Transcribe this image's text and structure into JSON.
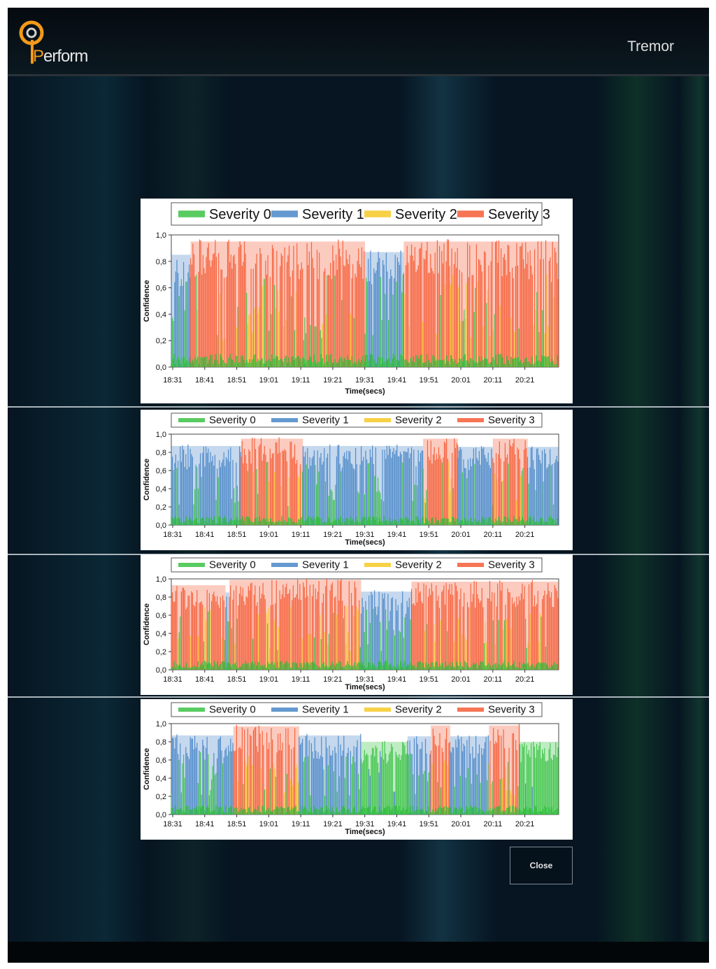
{
  "app": {
    "logo_text_prefix": "P",
    "logo_text_rest": "erform",
    "screen_title": "Tremor"
  },
  "legend": [
    {
      "label": "Severity 0",
      "color": "#2fbf3a"
    },
    {
      "label": "Severity 1",
      "color": "#3e7fc4"
    },
    {
      "label": "Severity 2",
      "color": "#f5c518"
    },
    {
      "label": "Severity 3",
      "color": "#f4532b"
    }
  ],
  "close_label": "Close",
  "chart_data": [
    {
      "type": "area",
      "title": "",
      "xlabel": "Time(secs)",
      "ylabel": "Confidence",
      "ylim": [
        0,
        1
      ],
      "yticks": [
        "0,0",
        "0,2",
        "0,4",
        "0,6",
        "0,8",
        "1,0"
      ],
      "xticks": [
        "18:31",
        "18:41",
        "18:51",
        "19:01",
        "19:11",
        "19:21",
        "19:31",
        "19:41",
        "19:51",
        "20:01",
        "20:11",
        "20:21"
      ],
      "dominant_segments": [
        {
          "from": 0,
          "to": 0.05,
          "severity": 1,
          "level": 0.85
        },
        {
          "from": 0.05,
          "to": 0.5,
          "severity": 3,
          "level": 0.95
        },
        {
          "from": 0.5,
          "to": 0.6,
          "severity": 1,
          "level": 0.87
        },
        {
          "from": 0.6,
          "to": 1.0,
          "severity": 3,
          "level": 0.95
        }
      ]
    },
    {
      "type": "area",
      "title": "",
      "xlabel": "Time(secs)",
      "ylabel": "Confidence",
      "ylim": [
        0,
        1
      ],
      "yticks": [
        "0,0",
        "0,2",
        "0,4",
        "0,6",
        "0,8",
        "1,0"
      ],
      "xticks": [
        "18:31",
        "18:41",
        "18:51",
        "19:01",
        "19:11",
        "19:21",
        "19:31",
        "19:41",
        "19:51",
        "20:01",
        "20:11",
        "20:21"
      ],
      "dominant_segments": [
        {
          "from": 0,
          "to": 0.18,
          "severity": 1,
          "level": 0.87
        },
        {
          "from": 0.18,
          "to": 0.34,
          "severity": 3,
          "level": 0.95
        },
        {
          "from": 0.34,
          "to": 0.65,
          "severity": 1,
          "level": 0.87
        },
        {
          "from": 0.65,
          "to": 0.74,
          "severity": 3,
          "level": 0.95
        },
        {
          "from": 0.74,
          "to": 0.83,
          "severity": 1,
          "level": 0.86
        },
        {
          "from": 0.83,
          "to": 0.92,
          "severity": 3,
          "level": 0.95
        },
        {
          "from": 0.92,
          "to": 1.0,
          "severity": 1,
          "level": 0.86
        }
      ]
    },
    {
      "type": "area",
      "title": "",
      "xlabel": "Time(secs)",
      "ylabel": "Confidence",
      "ylim": [
        0,
        1
      ],
      "yticks": [
        "0,0",
        "0,2",
        "0,4",
        "0,6",
        "0,8",
        "1,0"
      ],
      "xticks": [
        "18:31",
        "18:41",
        "18:51",
        "19:01",
        "19:11",
        "19:21",
        "19:31",
        "19:41",
        "19:51",
        "20:01",
        "20:11",
        "20:21"
      ],
      "dominant_segments": [
        {
          "from": 0,
          "to": 0.14,
          "severity": 3,
          "level": 0.93
        },
        {
          "from": 0.14,
          "to": 0.15,
          "severity": 1,
          "level": 0.85
        },
        {
          "from": 0.15,
          "to": 0.49,
          "severity": 3,
          "level": 0.99
        },
        {
          "from": 0.49,
          "to": 0.62,
          "severity": 1,
          "level": 0.86
        },
        {
          "from": 0.62,
          "to": 1.0,
          "severity": 3,
          "level": 0.97
        }
      ]
    },
    {
      "type": "area",
      "title": "",
      "xlabel": "Time(secs)",
      "ylabel": "Confidence",
      "ylim": [
        0,
        1
      ],
      "yticks": [
        "0,0",
        "0,2",
        "0,4",
        "0,6",
        "0,8",
        "1,0"
      ],
      "xticks": [
        "18:31",
        "18:41",
        "18:51",
        "19:01",
        "19:11",
        "19:21",
        "19:31",
        "19:41",
        "19:51",
        "20:01",
        "20:11",
        "20:21"
      ],
      "dominant_segments": [
        {
          "from": 0,
          "to": 0.16,
          "severity": 1,
          "level": 0.87
        },
        {
          "from": 0.16,
          "to": 0.33,
          "severity": 3,
          "level": 0.97
        },
        {
          "from": 0.33,
          "to": 0.49,
          "severity": 1,
          "level": 0.87
        },
        {
          "from": 0.49,
          "to": 0.61,
          "severity": 0,
          "level": 0.8
        },
        {
          "from": 0.61,
          "to": 0.67,
          "severity": 1,
          "level": 0.86
        },
        {
          "from": 0.67,
          "to": 0.72,
          "severity": 3,
          "level": 0.98
        },
        {
          "from": 0.72,
          "to": 0.82,
          "severity": 1,
          "level": 0.86
        },
        {
          "from": 0.82,
          "to": 0.9,
          "severity": 3,
          "level": 0.98
        },
        {
          "from": 0.9,
          "to": 1.0,
          "severity": 0,
          "level": 0.8
        }
      ]
    }
  ]
}
